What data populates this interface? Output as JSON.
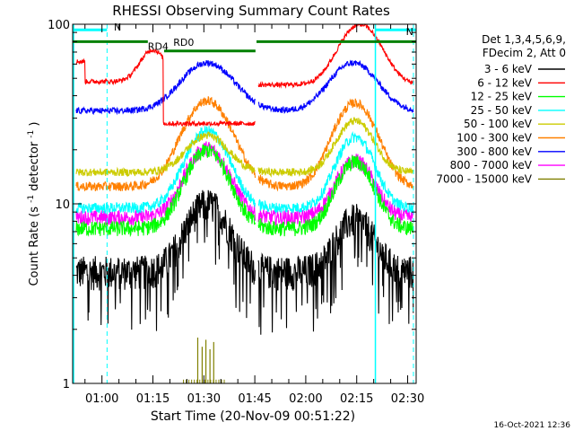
{
  "chart_data": {
    "type": "line",
    "title": "RHESSI Observing Summary Count Rates",
    "xlabel": "Start Time (20-Nov-09 00:51:22)",
    "ylabel_main": "Count Rate (s",
    "ylabel_sup1": "-1",
    "ylabel_mid": " detector",
    "ylabel_sup2": "-1",
    "ylabel_end": ")",
    "yscale": "log",
    "ylim": [
      1,
      100
    ],
    "xlim_minutes": [
      51.37,
      152.5
    ],
    "x_ticks": [
      {
        "label": "01:00",
        "minutes": 60
      },
      {
        "label": "01:15",
        "minutes": 75
      },
      {
        "label": "01:30",
        "minutes": 90
      },
      {
        "label": "01:45",
        "minutes": 105
      },
      {
        "label": "02:00",
        "minutes": 120
      },
      {
        "label": "02:15",
        "minutes": 135
      },
      {
        "label": "02:30",
        "minutes": 150
      }
    ],
    "y_ticks": [
      {
        "label": "1",
        "value": 1
      },
      {
        "label": "10",
        "value": 10
      },
      {
        "label": "100",
        "value": 100
      }
    ],
    "legend": {
      "position": "top-right",
      "header": [
        "Det 1,3,4,5,6,9,",
        "FDecim 2, Att 0"
      ]
    },
    "series": [
      {
        "name": "3 - 6 keV",
        "color": "#000000",
        "level": 0.8
      },
      {
        "name": "6 - 12 keV",
        "color": "#ff0000",
        "level": 5.5
      },
      {
        "name": "12 - 25 keV",
        "color": "#00ff00",
        "level": 1.6
      },
      {
        "name": "25 - 50 keV",
        "color": "#00ffff",
        "level": 1.0
      },
      {
        "name": "50 - 100 keV",
        "color": "#cccc00",
        "level": 1.7
      },
      {
        "name": "100 - 300 keV",
        "color": "#ff8000",
        "level": 1.35
      },
      {
        "name": "300 - 800 keV",
        "color": "#0000ff",
        "level": 3.6
      },
      {
        "name": "800 - 7000 keV",
        "color": "#ff00ff",
        "level": 0.85
      },
      {
        "name": "7000 - 15000 keV",
        "color": "#808000",
        "level": 0.1
      }
    ],
    "annotations": {
      "night_label_1": "N",
      "night_label_2": "N",
      "rd4_label": "RD4",
      "rd0_label": "RD0"
    },
    "colors": {
      "night": "#00ffff",
      "decimation": "#008000",
      "axis": "#000000"
    },
    "timestamp": "16-Oct-2021 12:36"
  }
}
